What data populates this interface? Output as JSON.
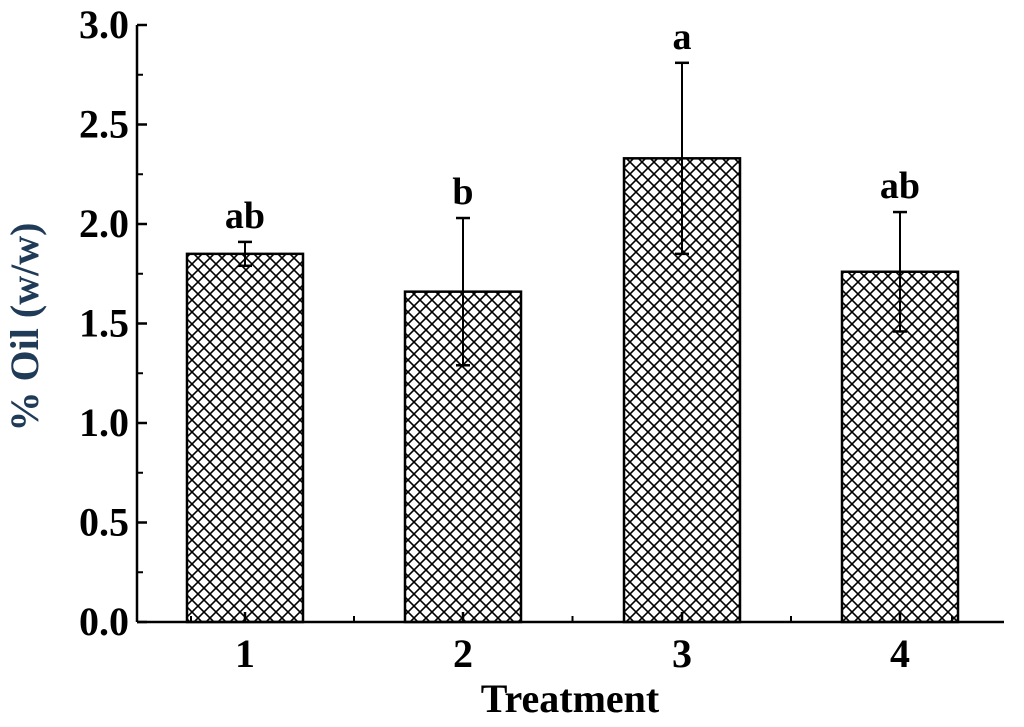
{
  "chart_data": {
    "type": "bar",
    "categories": [
      "1",
      "2",
      "3",
      "4"
    ],
    "values": [
      1.85,
      1.66,
      2.33,
      1.76
    ],
    "errors": [
      0.06,
      0.37,
      0.48,
      0.3
    ],
    "significance_labels": [
      "ab",
      "b",
      "a",
      "ab"
    ],
    "xlabel": "Treatment",
    "ylabel": "% Oil (w/w)",
    "ylim": [
      0,
      3.0
    ],
    "yticks": [
      "0.0",
      "0.5",
      "1.0",
      "1.5",
      "2.0",
      "2.5",
      "3.0"
    ],
    "grid": false,
    "legend": "none",
    "bar_fill": "crosshatch",
    "colors": {
      "bar_stroke": "#000000",
      "ylabel": "#1f3b57",
      "xlabel": "#000000"
    }
  }
}
